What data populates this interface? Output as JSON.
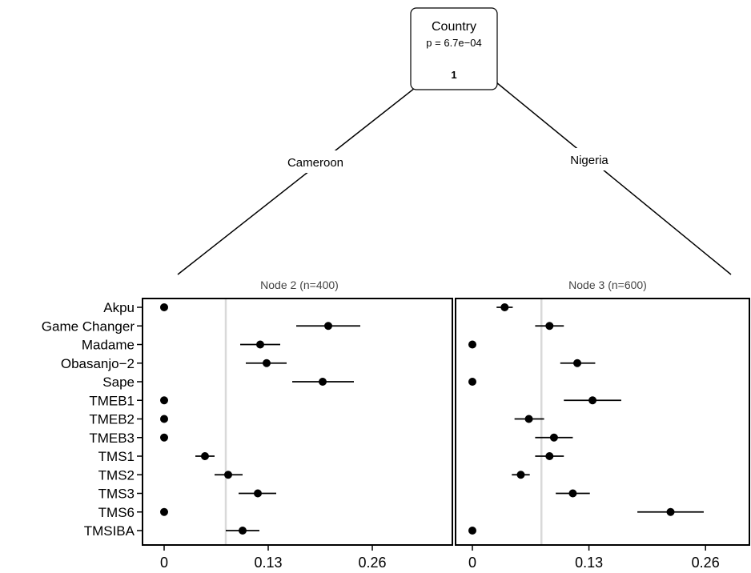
{
  "tree": {
    "split": {
      "variable": "Country",
      "pvalue": "p = 6.7e−04",
      "node_id": "1"
    },
    "edges": {
      "left": "Cameroon",
      "right": "Nigeria"
    }
  },
  "chart_data": [
    {
      "type": "scatter",
      "title": "Node 2 (n=400)",
      "categories": [
        "Akpu",
        "Game Changer",
        "Madame",
        "Obasanjo−2",
        "Sape",
        "TMEB1",
        "TMEB2",
        "TMEB3",
        "TMS1",
        "TMS2",
        "TMS3",
        "TMS6",
        "TMSIBA"
      ],
      "estimate": [
        0.0,
        0.205,
        0.12,
        0.128,
        0.198,
        0.0,
        0.0,
        0.0,
        0.051,
        0.08,
        0.117,
        0.0,
        0.098
      ],
      "lower": [
        0.0,
        0.165,
        0.095,
        0.102,
        0.16,
        0.0,
        0.0,
        0.0,
        0.039,
        0.063,
        0.093,
        0.0,
        0.077
      ],
      "upper": [
        0.0,
        0.245,
        0.145,
        0.153,
        0.237,
        0.0,
        0.0,
        0.0,
        0.063,
        0.098,
        0.14,
        0.0,
        0.119
      ],
      "reference_line": 0.077,
      "x_ticks": [
        "0",
        "0.13",
        "0.26"
      ],
      "x_tick_values": [
        0,
        0.13,
        0.26
      ],
      "xlim": [
        -0.02,
        0.3
      ]
    },
    {
      "type": "scatter",
      "title": "Node 3 (n=600)",
      "categories": [
        "Akpu",
        "Game Changer",
        "Madame",
        "Obasanjo−2",
        "Sape",
        "TMEB1",
        "TMEB2",
        "TMEB3",
        "TMS1",
        "TMS2",
        "TMS3",
        "TMS6",
        "TMSIBA"
      ],
      "estimate": [
        0.036,
        0.086,
        0.0,
        0.117,
        0.0,
        0.134,
        0.063,
        0.091,
        0.086,
        0.054,
        0.112,
        0.221,
        0.0
      ],
      "lower": [
        0.027,
        0.07,
        0.0,
        0.098,
        0.0,
        0.102,
        0.047,
        0.07,
        0.07,
        0.044,
        0.093,
        0.184,
        0.0
      ],
      "upper": [
        0.045,
        0.102,
        0.0,
        0.137,
        0.0,
        0.166,
        0.08,
        0.112,
        0.102,
        0.064,
        0.131,
        0.258,
        0.0
      ],
      "reference_line": 0.077,
      "x_ticks": [
        "0",
        "0.13",
        "0.26"
      ],
      "x_tick_values": [
        0,
        0.13,
        0.26
      ],
      "xlim": [
        -0.02,
        0.3
      ]
    }
  ]
}
